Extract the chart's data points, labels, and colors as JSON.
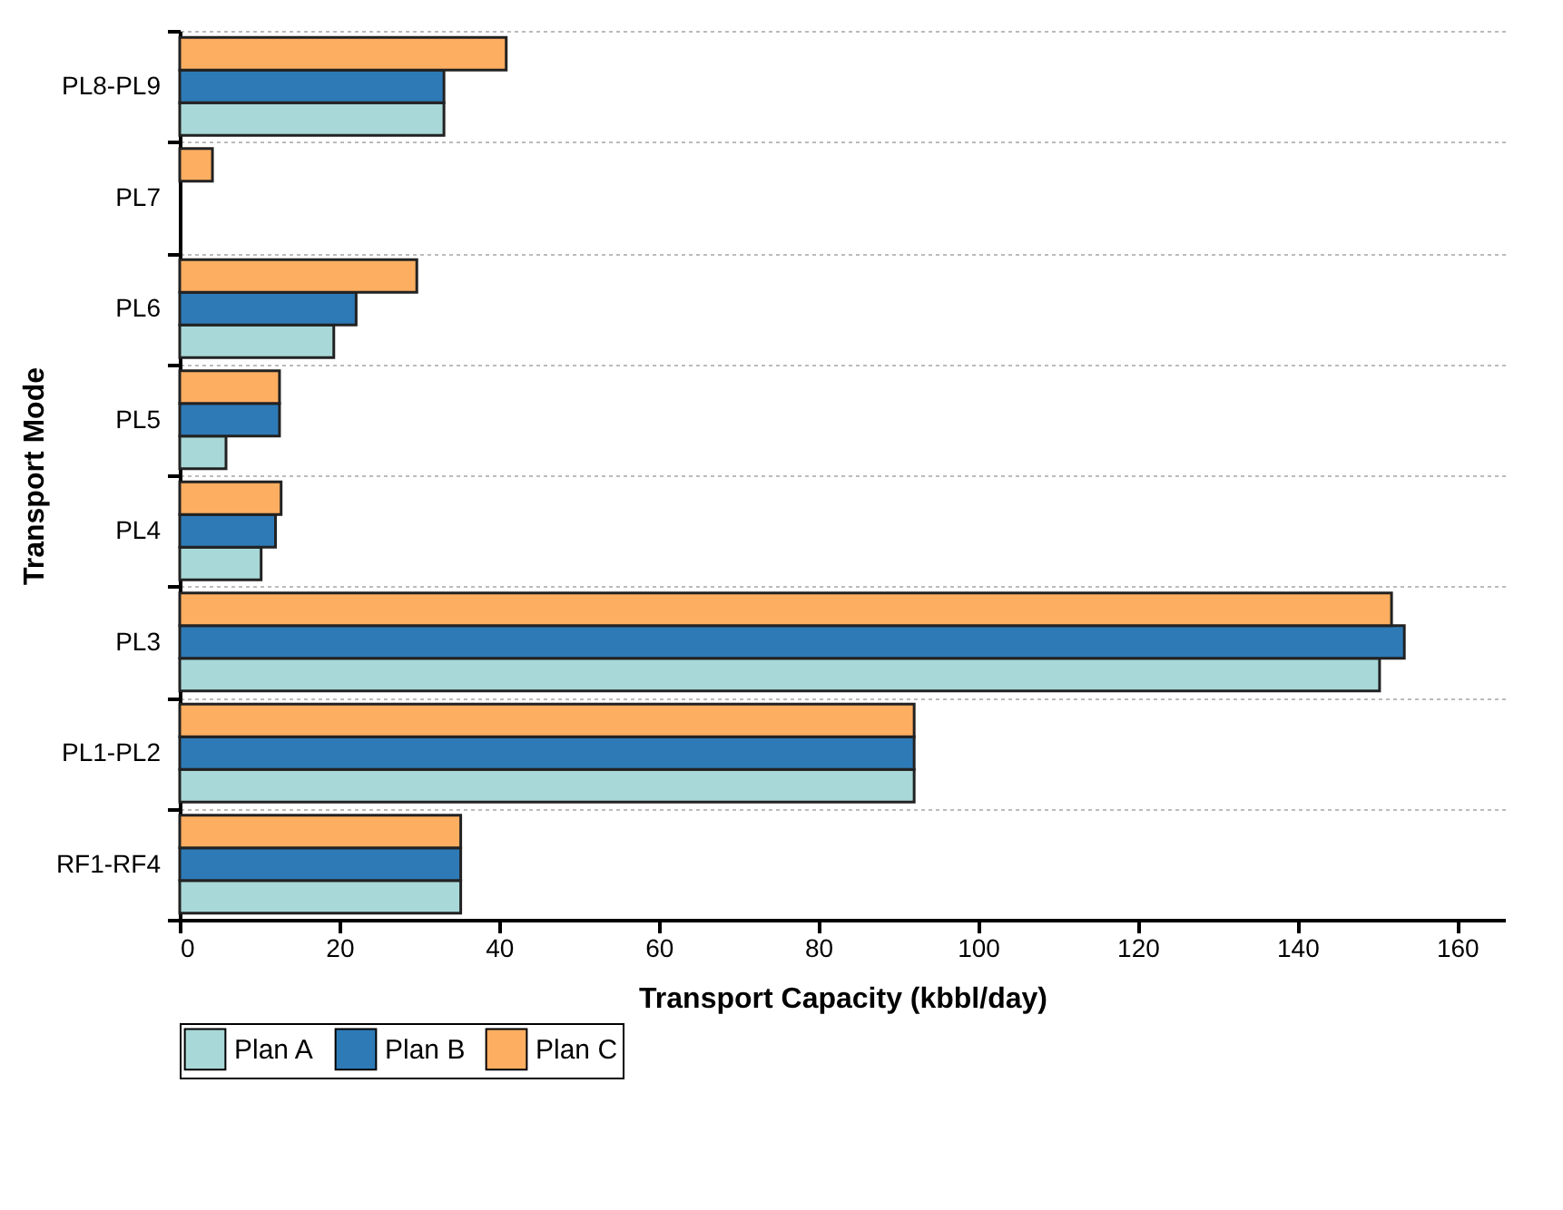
{
  "chart_data": {
    "type": "bar",
    "orientation": "horizontal",
    "xlabel": "Transport Capacity (kbbl/day)",
    "ylabel": "Transport Mode",
    "categories": [
      "PL8-PL9",
      "PL7",
      "PL6",
      "PL5",
      "PL4",
      "PL3",
      "PL1-PL2",
      "RF1-RF4"
    ],
    "series": [
      {
        "name": "Plan A",
        "color": "#a8d8d8",
        "values": [
          33.1,
          null,
          19.3,
          5.8,
          10.2,
          150.3,
          92,
          35.2
        ]
      },
      {
        "name": "Plan B",
        "color": "#2e7ab6",
        "values": [
          33.1,
          null,
          22.1,
          12.5,
          12.0,
          153.4,
          92,
          35.2
        ]
      },
      {
        "name": "Plan C",
        "color": "#fdae61",
        "values": [
          40.9,
          4.1,
          29.7,
          12.5,
          12.7,
          151.8,
          92,
          35.2
        ]
      }
    ],
    "xlim": [
      0,
      166
    ],
    "xticks": [
      0,
      20,
      40,
      60,
      80,
      100,
      120,
      140,
      160
    ],
    "grid": "y",
    "legend": "bottom"
  }
}
